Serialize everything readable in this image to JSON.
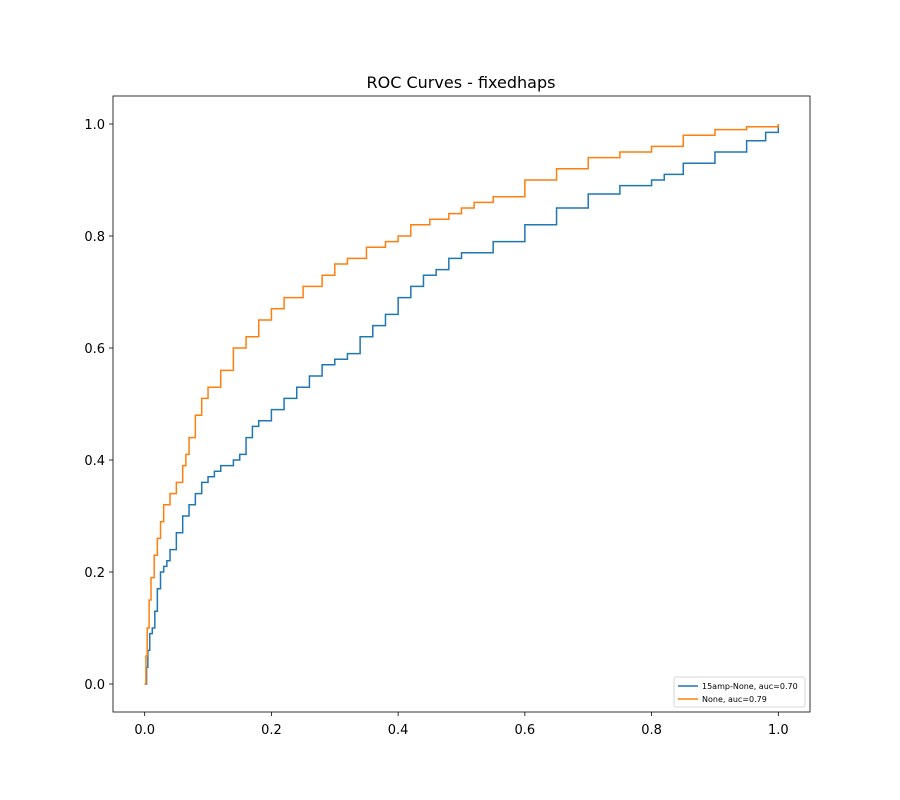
{
  "chart_data": {
    "type": "line",
    "title": "ROC Curves - fixedhaps",
    "xlabel": "",
    "ylabel": "",
    "xlim": [
      -0.05,
      1.05
    ],
    "ylim": [
      -0.05,
      1.05
    ],
    "xticks": [
      0.0,
      0.2,
      0.4,
      0.6,
      0.8,
      1.0
    ],
    "yticks": [
      0.0,
      0.2,
      0.4,
      0.6,
      0.8,
      1.0
    ],
    "xtick_labels": [
      "0.0",
      "0.2",
      "0.4",
      "0.6",
      "0.8",
      "1.0"
    ],
    "ytick_labels": [
      "0.0",
      "0.2",
      "0.4",
      "0.6",
      "0.8",
      "1.0"
    ],
    "grid": false,
    "legend_position": "lower-right",
    "series": [
      {
        "name": "15amp-None, auc=0.70",
        "color": "#1f77b4",
        "x": [
          0.0,
          0.003,
          0.005,
          0.008,
          0.012,
          0.016,
          0.02,
          0.025,
          0.03,
          0.035,
          0.04,
          0.05,
          0.06,
          0.07,
          0.08,
          0.09,
          0.1,
          0.11,
          0.12,
          0.14,
          0.15,
          0.16,
          0.17,
          0.18,
          0.2,
          0.22,
          0.24,
          0.26,
          0.28,
          0.3,
          0.32,
          0.34,
          0.36,
          0.38,
          0.4,
          0.42,
          0.44,
          0.46,
          0.48,
          0.5,
          0.55,
          0.6,
          0.65,
          0.7,
          0.75,
          0.8,
          0.82,
          0.85,
          0.9,
          0.95,
          0.98,
          1.0
        ],
        "y": [
          0.0,
          0.03,
          0.06,
          0.09,
          0.1,
          0.13,
          0.17,
          0.2,
          0.21,
          0.22,
          0.24,
          0.27,
          0.3,
          0.32,
          0.34,
          0.36,
          0.37,
          0.38,
          0.39,
          0.4,
          0.41,
          0.44,
          0.46,
          0.47,
          0.49,
          0.51,
          0.53,
          0.55,
          0.57,
          0.58,
          0.59,
          0.62,
          0.64,
          0.66,
          0.69,
          0.71,
          0.73,
          0.74,
          0.76,
          0.77,
          0.79,
          0.82,
          0.85,
          0.875,
          0.89,
          0.9,
          0.91,
          0.93,
          0.95,
          0.97,
          0.985,
          1.0
        ]
      },
      {
        "name": "None, auc=0.79",
        "color": "#ff7f0e",
        "x": [
          0.0,
          0.002,
          0.004,
          0.007,
          0.01,
          0.015,
          0.02,
          0.025,
          0.03,
          0.04,
          0.05,
          0.06,
          0.065,
          0.07,
          0.08,
          0.09,
          0.1,
          0.12,
          0.14,
          0.16,
          0.18,
          0.2,
          0.22,
          0.25,
          0.28,
          0.3,
          0.32,
          0.35,
          0.38,
          0.4,
          0.42,
          0.45,
          0.48,
          0.5,
          0.52,
          0.55,
          0.6,
          0.65,
          0.7,
          0.75,
          0.8,
          0.85,
          0.9,
          0.95,
          1.0
        ],
        "y": [
          0.0,
          0.05,
          0.1,
          0.15,
          0.19,
          0.23,
          0.26,
          0.29,
          0.32,
          0.34,
          0.36,
          0.39,
          0.41,
          0.44,
          0.48,
          0.51,
          0.53,
          0.56,
          0.6,
          0.62,
          0.65,
          0.67,
          0.69,
          0.71,
          0.73,
          0.75,
          0.76,
          0.78,
          0.79,
          0.8,
          0.82,
          0.83,
          0.84,
          0.85,
          0.86,
          0.87,
          0.9,
          0.92,
          0.94,
          0.95,
          0.96,
          0.98,
          0.99,
          0.995,
          1.0
        ]
      }
    ]
  }
}
